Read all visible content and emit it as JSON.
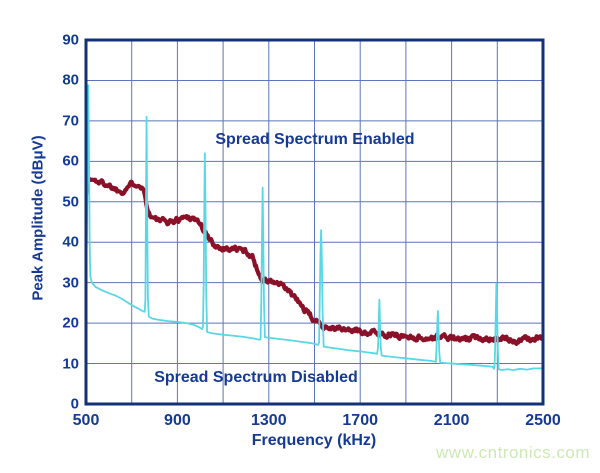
{
  "watermark": {
    "text": "www.cntronics.com",
    "color": "#cde9b4"
  },
  "chart_data": {
    "type": "line",
    "title": "",
    "xlabel": "Frequency (kHz)",
    "ylabel": "Peak Amplitude (dBμV)",
    "xlim": [
      500,
      2500
    ],
    "ylim": [
      0,
      90
    ],
    "x_ticks": [
      500,
      900,
      1300,
      1700,
      2100,
      2500
    ],
    "y_ticks": [
      90,
      80,
      70,
      60,
      50,
      40,
      30,
      20,
      10,
      0
    ],
    "x_grid_interval_khz": 200,
    "y_grid_interval_db": 10,
    "grid": true,
    "legend_position": "in-plot text annotations",
    "colors": {
      "axis_text": "#153a94",
      "border": "#123179",
      "grid": "#5b76ba",
      "background": "#ffffff"
    },
    "annotations": [
      {
        "text": "Spread Spectrum Enabled",
        "f_khz": 1502,
        "amp_dbuv": 65.3,
        "series": "enabled"
      },
      {
        "text": "Spread Spectrum Disabled",
        "f_khz": 1244,
        "amp_dbuv": 6.4,
        "series": "disabled"
      }
    ],
    "spur_peaks_khz": [
      510,
      765,
      1020,
      1275,
      1530,
      1785,
      2040,
      2295
    ],
    "series": [
      {
        "name": "Spread Spectrum Enabled",
        "color": "#8a1128",
        "style": "thick-noisy",
        "points": [
          [
            500,
            52
          ],
          [
            504,
            54.8
          ],
          [
            515,
            55.6
          ],
          [
            535,
            55.3
          ],
          [
            560,
            54.9
          ],
          [
            590,
            54.4
          ],
          [
            620,
            53.5
          ],
          [
            645,
            52.7
          ],
          [
            665,
            52.8
          ],
          [
            685,
            53.9
          ],
          [
            710,
            54.6
          ],
          [
            735,
            54.5
          ],
          [
            752,
            53
          ],
          [
            765,
            49.5
          ],
          [
            778,
            46.9
          ],
          [
            800,
            45.7
          ],
          [
            830,
            45.2
          ],
          [
            860,
            45
          ],
          [
            890,
            45.3
          ],
          [
            915,
            45.9
          ],
          [
            940,
            46.3
          ],
          [
            965,
            46.1
          ],
          [
            985,
            45.5
          ],
          [
            1002,
            44.4
          ],
          [
            1018,
            42.6
          ],
          [
            1035,
            41
          ],
          [
            1055,
            39.7
          ],
          [
            1080,
            38.8
          ],
          [
            1110,
            38.5
          ],
          [
            1145,
            38.4
          ],
          [
            1180,
            38.1
          ],
          [
            1210,
            37.4
          ],
          [
            1228,
            36.4
          ],
          [
            1243,
            34.2
          ],
          [
            1258,
            32
          ],
          [
            1272,
            30.9
          ],
          [
            1290,
            30.4
          ],
          [
            1315,
            30.2
          ],
          [
            1335,
            29.8
          ],
          [
            1355,
            29.2
          ],
          [
            1375,
            28.4
          ],
          [
            1395,
            27.4
          ],
          [
            1415,
            26.2
          ],
          [
            1435,
            24.8
          ],
          [
            1455,
            23.4
          ],
          [
            1475,
            22
          ],
          [
            1495,
            20.9
          ],
          [
            1515,
            20.1
          ],
          [
            1535,
            19.6
          ],
          [
            1565,
            19
          ],
          [
            1605,
            18.6
          ],
          [
            1655,
            18.3
          ],
          [
            1705,
            18
          ],
          [
            1755,
            17.6
          ],
          [
            1805,
            17.3
          ],
          [
            1855,
            17
          ],
          [
            1905,
            16.7
          ],
          [
            1955,
            16.4
          ],
          [
            2005,
            16.2
          ],
          [
            2035,
            16.5
          ],
          [
            2065,
            16.7
          ],
          [
            2095,
            16.3
          ],
          [
            2125,
            16
          ],
          [
            2155,
            15.8
          ],
          [
            2185,
            16.1
          ],
          [
            2215,
            16.4
          ],
          [
            2245,
            16.4
          ],
          [
            2275,
            16.3
          ],
          [
            2305,
            16.1
          ],
          [
            2335,
            15.9
          ],
          [
            2365,
            15.6
          ],
          [
            2395,
            15.8
          ],
          [
            2425,
            16
          ],
          [
            2455,
            16.2
          ],
          [
            2480,
            16.4
          ],
          [
            2500,
            16.5
          ]
        ]
      },
      {
        "name": "Spread Spectrum Disabled",
        "color": "#58d8e4",
        "style": "thin-with-spurs",
        "points": [
          [
            500,
            31
          ],
          [
            504,
            42
          ],
          [
            507,
            62
          ],
          [
            510,
            78.8
          ],
          [
            513,
            62
          ],
          [
            516,
            40
          ],
          [
            519,
            31.5
          ],
          [
            526,
            30
          ],
          [
            540,
            29
          ],
          [
            570,
            28.1
          ],
          [
            600,
            27.4
          ],
          [
            630,
            26.8
          ],
          [
            660,
            25.9
          ],
          [
            690,
            24.8
          ],
          [
            715,
            24
          ],
          [
            735,
            23.4
          ],
          [
            750,
            22.9
          ],
          [
            757,
            22.8
          ],
          [
            760,
            26
          ],
          [
            762,
            45
          ],
          [
            765,
            71
          ],
          [
            768,
            45
          ],
          [
            771,
            26
          ],
          [
            775,
            21.6
          ],
          [
            790,
            21.1
          ],
          [
            820,
            20.8
          ],
          [
            860,
            20.5
          ],
          [
            900,
            20.3
          ],
          [
            940,
            20
          ],
          [
            970,
            19.6
          ],
          [
            995,
            19
          ],
          [
            1008,
            18.5
          ],
          [
            1012,
            19
          ],
          [
            1015,
            30
          ],
          [
            1018,
            50
          ],
          [
            1020,
            62
          ],
          [
            1023,
            48
          ],
          [
            1026,
            28
          ],
          [
            1030,
            17.8
          ],
          [
            1050,
            17.5
          ],
          [
            1090,
            17.2
          ],
          [
            1140,
            16.9
          ],
          [
            1190,
            16.6
          ],
          [
            1235,
            16.2
          ],
          [
            1258,
            15.9
          ],
          [
            1264,
            16
          ],
          [
            1267,
            25
          ],
          [
            1270,
            40
          ],
          [
            1273,
            53.5
          ],
          [
            1276,
            40
          ],
          [
            1279,
            25
          ],
          [
            1283,
            16.5
          ],
          [
            1300,
            16.4
          ],
          [
            1340,
            16.1
          ],
          [
            1390,
            15.8
          ],
          [
            1440,
            15.4
          ],
          [
            1480,
            15.1
          ],
          [
            1505,
            14.8
          ],
          [
            1516,
            14.6
          ],
          [
            1520,
            15.2
          ],
          [
            1523,
            26
          ],
          [
            1526,
            37
          ],
          [
            1529,
            43
          ],
          [
            1532,
            36
          ],
          [
            1535,
            24
          ],
          [
            1540,
            14.2
          ],
          [
            1560,
            14
          ],
          [
            1600,
            13.7
          ],
          [
            1650,
            13.3
          ],
          [
            1700,
            13
          ],
          [
            1740,
            12.7
          ],
          [
            1765,
            12.5
          ],
          [
            1774,
            12.4
          ],
          [
            1778,
            14
          ],
          [
            1781,
            20
          ],
          [
            1784,
            25.8
          ],
          [
            1787,
            19
          ],
          [
            1790,
            14
          ],
          [
            1794,
            12
          ],
          [
            1815,
            11.8
          ],
          [
            1865,
            11.5
          ],
          [
            1915,
            11.2
          ],
          [
            1965,
            10.9
          ],
          [
            2005,
            10.7
          ],
          [
            2025,
            10.5
          ],
          [
            2031,
            10.4
          ],
          [
            2034,
            14
          ],
          [
            2037,
            19
          ],
          [
            2040,
            23
          ],
          [
            2043,
            18
          ],
          [
            2046,
            13
          ],
          [
            2050,
            10.2
          ],
          [
            2075,
            10.1
          ],
          [
            2125,
            9.9
          ],
          [
            2175,
            9.7
          ],
          [
            2225,
            9.5
          ],
          [
            2262,
            9.3
          ],
          [
            2280,
            9.2
          ],
          [
            2285,
            8.7
          ],
          [
            2288,
            9.5
          ],
          [
            2291,
            15
          ],
          [
            2294,
            24
          ],
          [
            2296,
            29.8
          ],
          [
            2299,
            23
          ],
          [
            2302,
            14
          ],
          [
            2306,
            8.6
          ],
          [
            2320,
            8.4
          ],
          [
            2345,
            8.6
          ],
          [
            2370,
            8.4
          ],
          [
            2400,
            8.7
          ],
          [
            2430,
            8.5
          ],
          [
            2460,
            8.8
          ],
          [
            2500,
            8.8
          ]
        ]
      }
    ]
  }
}
